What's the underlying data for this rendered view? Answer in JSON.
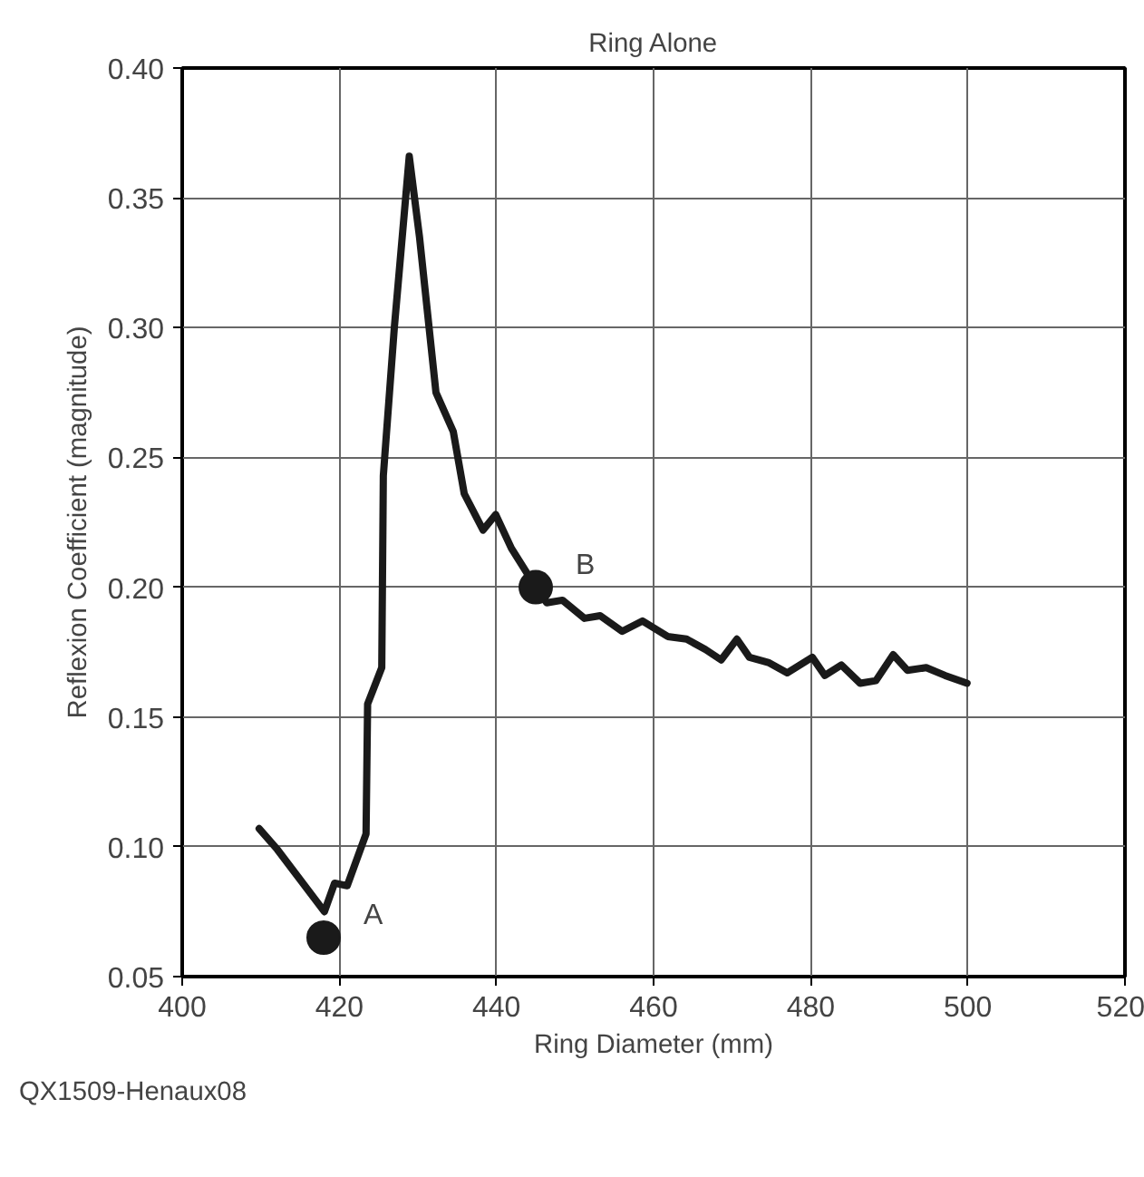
{
  "chart_data": {
    "type": "line",
    "title": "Ring Alone",
    "xlabel": "Ring Diameter (mm)",
    "ylabel": "Reflexion Coefficient (magnitude)",
    "xlim": [
      400,
      520
    ],
    "xticks": [
      400,
      420,
      440,
      460,
      480,
      500,
      520
    ],
    "ylim": [
      0.05,
      0.4
    ],
    "yticks": [
      {
        "value": 0.05,
        "label": "0.05"
      },
      {
        "value": 0.1,
        "label": "0.10"
      },
      {
        "value": 0.15,
        "label": "0.15"
      },
      {
        "value": 0.2,
        "label": "0.20"
      },
      {
        "value": 0.25,
        "label": "0.25"
      },
      {
        "value": 0.3,
        "label": "0.30"
      },
      {
        "value": 0.35,
        "label": "0.35"
      },
      {
        "value": 0.4,
        "label": "0.40"
      }
    ],
    "grid": true,
    "series": [
      {
        "color": "#1a1a1a",
        "x": [
          409.8,
          412.1,
          418.1,
          419.4,
          421,
          423.4,
          423.6,
          425.4,
          425.6,
          427,
          428.9,
          430.2,
          432.3,
          434.5,
          435.9,
          438.3,
          439.9,
          441.9,
          444.8,
          446.4,
          448.4,
          451.2,
          453.2,
          456,
          458.6,
          461.8,
          464.2,
          466.6,
          468.6,
          470.6,
          472.2,
          474.6,
          477,
          480.2,
          481.8,
          483.9,
          486.3,
          488.3,
          490.5,
          492.3,
          494.7,
          497.1,
          499.9
        ],
        "values": [
          0.107,
          0.099,
          0.075,
          0.086,
          0.085,
          0.105,
          0.155,
          0.169,
          0.243,
          0.3,
          0.366,
          0.335,
          0.275,
          0.26,
          0.236,
          0.222,
          0.228,
          0.215,
          0.201,
          0.194,
          0.195,
          0.188,
          0.189,
          0.183,
          0.187,
          0.181,
          0.18,
          0.176,
          0.172,
          0.18,
          0.173,
          0.171,
          0.167,
          0.173,
          0.166,
          0.17,
          0.163,
          0.164,
          0.174,
          0.168,
          0.169,
          0.166,
          0.163
        ]
      },
      {
        "type": "scatter",
        "color": "#1a1a1a",
        "marker": "circle",
        "x": [
          418,
          445
        ],
        "values": [
          0.065,
          0.2
        ]
      }
    ],
    "annotations": [
      {
        "text": "A",
        "x": 418,
        "y": 0.065
      },
      {
        "text": "B",
        "x": 445,
        "y": 0.2
      },
      "QX1509-Henaux08"
    ]
  }
}
